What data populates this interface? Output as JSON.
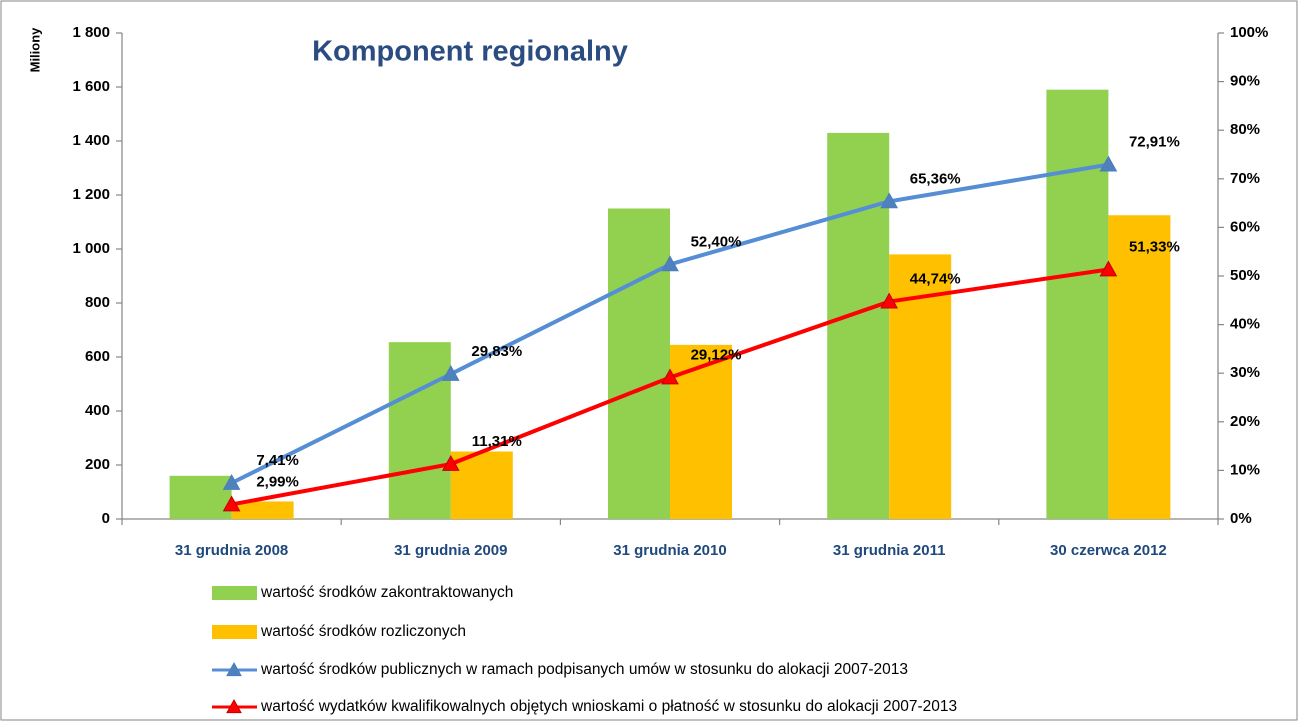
{
  "chart_data": {
    "type": "bar-line",
    "title": "Komponent regionalny",
    "ylabel": "Miliony",
    "categories": [
      "31 grudnia 2008",
      "31 grudnia 2009",
      "31 grudnia 2010",
      "31 grudnia 2011",
      "30 czerwca 2012"
    ],
    "series": [
      {
        "name": "wartość środków zakontraktowanych",
        "type": "bar",
        "color": "#92D050",
        "values": [
          160,
          655,
          1150,
          1430,
          1590
        ]
      },
      {
        "name": "wartość środków rozliczonych",
        "type": "bar",
        "color": "#FFC000",
        "values": [
          65,
          250,
          645,
          980,
          1125
        ]
      },
      {
        "name": "wartość środków publicznych w ramach podpisanych umów w stosunku do alokacji 2007-2013",
        "type": "line",
        "axis": "y2",
        "color": "#558ED5",
        "marker_color": "#4F81BD",
        "values": [
          7.41,
          29.83,
          52.4,
          65.36,
          72.91
        ],
        "value_labels": [
          "7,41%",
          "29,83%",
          "52,40%",
          "65,36%",
          "72,91%"
        ]
      },
      {
        "name": "wartość wydatków kwalifikowalnych objętych wnioskami o płatność w stosunku do alokacji 2007-2013",
        "type": "line",
        "axis": "y2",
        "color": "#FF0000",
        "marker_color": "#FF0000",
        "values": [
          2.99,
          11.31,
          29.12,
          44.74,
          51.33
        ],
        "value_labels": [
          "2,99%",
          "11,31%",
          "29,12%",
          "44,74%",
          "51,33%"
        ]
      }
    ],
    "ylim": [
      0,
      1800
    ],
    "yticks": [
      0,
      200,
      400,
      600,
      800,
      {
        "value": 1000,
        "label": "1 000"
      },
      {
        "value": 1200,
        "label": "1 200"
      },
      {
        "value": 1400,
        "label": "1 400"
      },
      {
        "value": 1600,
        "label": "1 600"
      },
      {
        "value": 1800,
        "label": "1 800"
      }
    ],
    "y2lim": [
      0,
      100
    ],
    "y2ticks": [
      {
        "value": 0,
        "label": "0%"
      },
      {
        "value": 10,
        "label": "10%"
      },
      {
        "value": 20,
        "label": "20%"
      },
      {
        "value": 30,
        "label": "30%"
      },
      {
        "value": 40,
        "label": "40%"
      },
      {
        "value": 50,
        "label": "50%"
      },
      {
        "value": 60,
        "label": "60%"
      },
      {
        "value": 70,
        "label": "70%"
      },
      {
        "value": 80,
        "label": "80%"
      },
      {
        "value": 90,
        "label": "90%"
      },
      {
        "value": 100,
        "label": "100%"
      }
    ],
    "grid": false,
    "legend": "bottom"
  }
}
